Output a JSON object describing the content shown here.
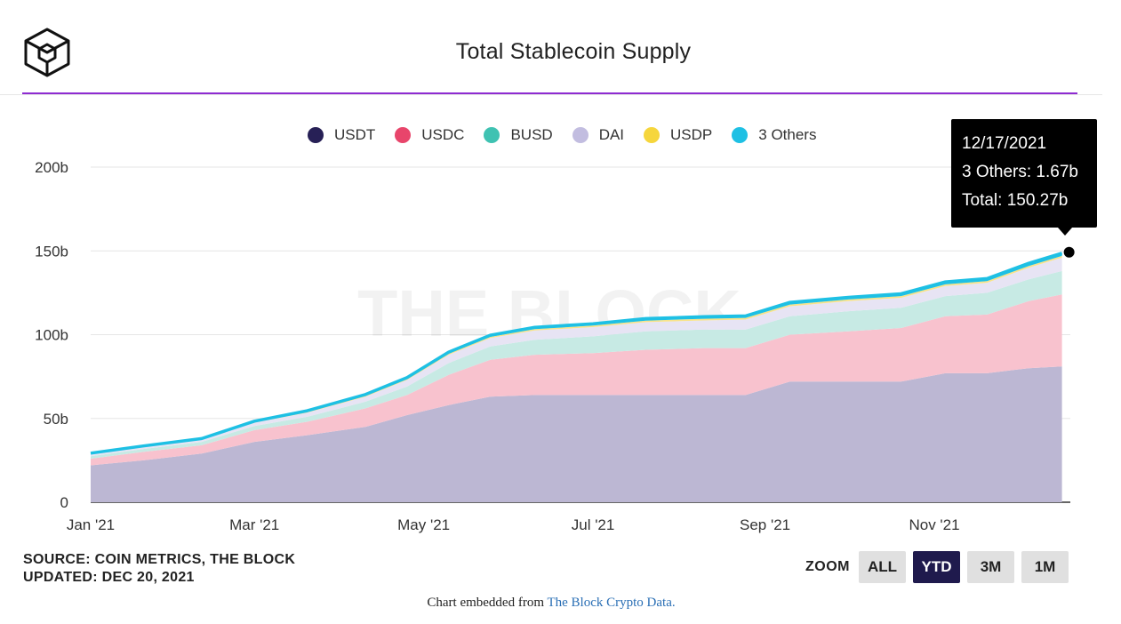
{
  "header": {
    "title": "Total Stablecoin Supply"
  },
  "tooltip": {
    "date": "12/17/2021",
    "series_line": "3 Others: 1.67b",
    "total_line": "Total: 150.27b"
  },
  "watermark": "THE BLOCK",
  "footer": {
    "source": "SOURCE: COIN METRICS, THE BLOCK",
    "updated": "UPDATED: DEC 20, 2021",
    "zoom_label": "ZOOM",
    "zoom_buttons": [
      "ALL",
      "YTD",
      "3M",
      "1M"
    ],
    "zoom_active": "YTD",
    "embed_prefix": "Chart embedded from",
    "embed_link": "The Block Crypto Data."
  },
  "colors": {
    "accent_rule": "#8e2bd1",
    "active_zoom": "#1f1a4d"
  },
  "chart_data": {
    "type": "area",
    "stacked": true,
    "title": "Total Stablecoin Supply",
    "ylim": [
      0,
      200
    ],
    "yticks": [
      0,
      50,
      100,
      150,
      200
    ],
    "ytick_labels": [
      "0",
      "50b",
      "100b",
      "150b",
      "200b"
    ],
    "xlim": [
      "2021-01-01",
      "2021-12-20"
    ],
    "xticks": [
      "2021-01-01",
      "2021-03-01",
      "2021-05-01",
      "2021-07-01",
      "2021-09-01",
      "2021-11-01"
    ],
    "xtick_labels": [
      "Jan '21",
      "Mar '21",
      "May '21",
      "Jul '21",
      "Sep '21",
      "Nov '21"
    ],
    "grid": true,
    "legend_position": "top",
    "x": [
      "2021-01-01",
      "2021-01-20",
      "2021-02-10",
      "2021-03-01",
      "2021-03-20",
      "2021-04-10",
      "2021-04-25",
      "2021-05-10",
      "2021-05-25",
      "2021-06-10",
      "2021-07-01",
      "2021-07-20",
      "2021-08-10",
      "2021-08-25",
      "2021-09-10",
      "2021-10-01",
      "2021-10-20",
      "2021-11-05",
      "2021-11-20",
      "2021-12-05",
      "2021-12-17"
    ],
    "series": [
      {
        "name": "USDT",
        "color": "#bcb7d3",
        "values": [
          22,
          25,
          29,
          36,
          40,
          45,
          52,
          58,
          63,
          64,
          64,
          64,
          64,
          64,
          72,
          72,
          72,
          77,
          77,
          80,
          81
        ]
      },
      {
        "name": "USDC",
        "color": "#f8c2ce",
        "values": [
          4,
          5,
          5,
          7,
          8,
          11,
          12,
          18,
          22,
          24,
          25,
          27,
          28,
          28,
          28,
          30,
          32,
          34,
          35,
          40,
          43
        ]
      },
      {
        "name": "BUSD",
        "color": "#c7eae4",
        "values": [
          1.5,
          1.8,
          2,
          2.5,
          3,
          4,
          5,
          7,
          8,
          9,
          10,
          11,
          11,
          11,
          11,
          12,
          12,
          12,
          13,
          13,
          14
        ]
      },
      {
        "name": "DAI",
        "color": "#e7e4f4",
        "values": [
          1,
          1,
          1.2,
          2,
          2.5,
          3,
          4,
          5,
          5,
          5.5,
          5.5,
          5.5,
          5.5,
          6,
          6,
          6,
          6,
          6,
          6,
          7,
          8
        ]
      },
      {
        "name": "USDP",
        "color": "#f8e38a",
        "values": [
          0.3,
          0.3,
          0.3,
          0.3,
          0.4,
          0.5,
          0.5,
          0.6,
          0.7,
          0.8,
          0.9,
          0.9,
          1,
          1,
          1,
          1,
          1,
          1,
          1,
          1,
          1
        ]
      },
      {
        "name": "3 Others",
        "color": "#1ec0e4",
        "values": [
          0.5,
          0.5,
          0.5,
          0.6,
          0.7,
          0.8,
          0.9,
          1,
          1,
          1.1,
          1.1,
          1.2,
          1.2,
          1.2,
          1.3,
          1.3,
          1.4,
          1.5,
          1.5,
          1.6,
          1.67
        ]
      }
    ],
    "highlight": {
      "x": "2021-12-17",
      "total": 150.27
    }
  }
}
